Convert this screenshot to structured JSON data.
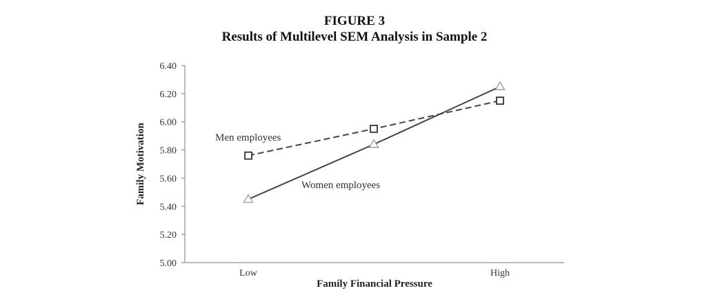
{
  "figure": {
    "label": "FIGURE 3",
    "title": "Results of Multilevel SEM Analysis in Sample 2"
  },
  "chart_data": {
    "type": "line",
    "title": "Results of Multilevel SEM Analysis in Sample 2",
    "xlabel": "Family Financial Pressure",
    "ylabel": "Family Motivation",
    "categories": [
      "Low",
      "",
      "High"
    ],
    "ylim": [
      5.0,
      6.4
    ],
    "yticks": [
      "5.00",
      "5.20",
      "5.40",
      "5.60",
      "5.80",
      "6.00",
      "6.20",
      "6.40"
    ],
    "grid": false,
    "series": [
      {
        "name": "Men employees",
        "values": [
          5.76,
          5.95,
          6.15
        ],
        "marker": "square",
        "line_style": "dashed",
        "color": "#444444"
      },
      {
        "name": "Women employees",
        "values": [
          5.45,
          5.84,
          6.25
        ],
        "marker": "triangle",
        "line_style": "solid",
        "color": "#444444",
        "marker_color": "#999999"
      }
    ]
  }
}
